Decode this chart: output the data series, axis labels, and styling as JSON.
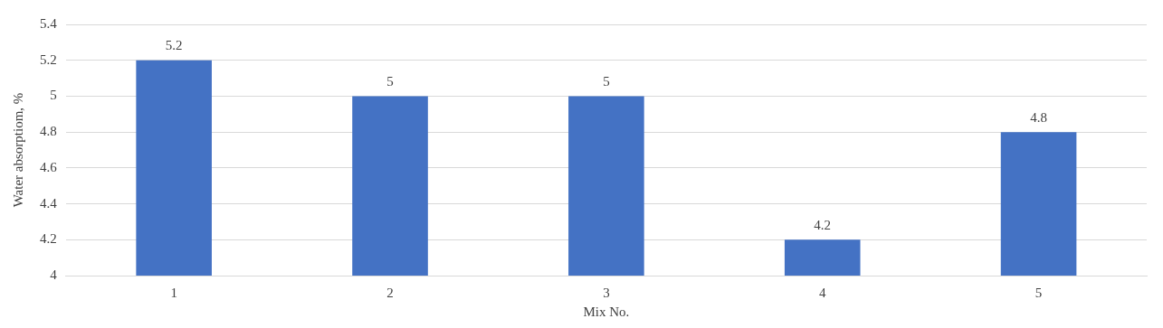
{
  "chart_data": {
    "type": "bar",
    "xlabel": "Mix No.",
    "ylabel": "Water absorptiom, %",
    "categories": [
      "1",
      "2",
      "3",
      "4",
      "5"
    ],
    "values": [
      5.2,
      5,
      5,
      4.2,
      4.8
    ],
    "color": "#4472c4",
    "ylim": [
      4,
      5.4
    ],
    "yticks": [
      4,
      4.2,
      4.4,
      4.6,
      4.8,
      5,
      5.2,
      5.4
    ],
    "grid": "y",
    "data_labels": true,
    "legend": false
  }
}
